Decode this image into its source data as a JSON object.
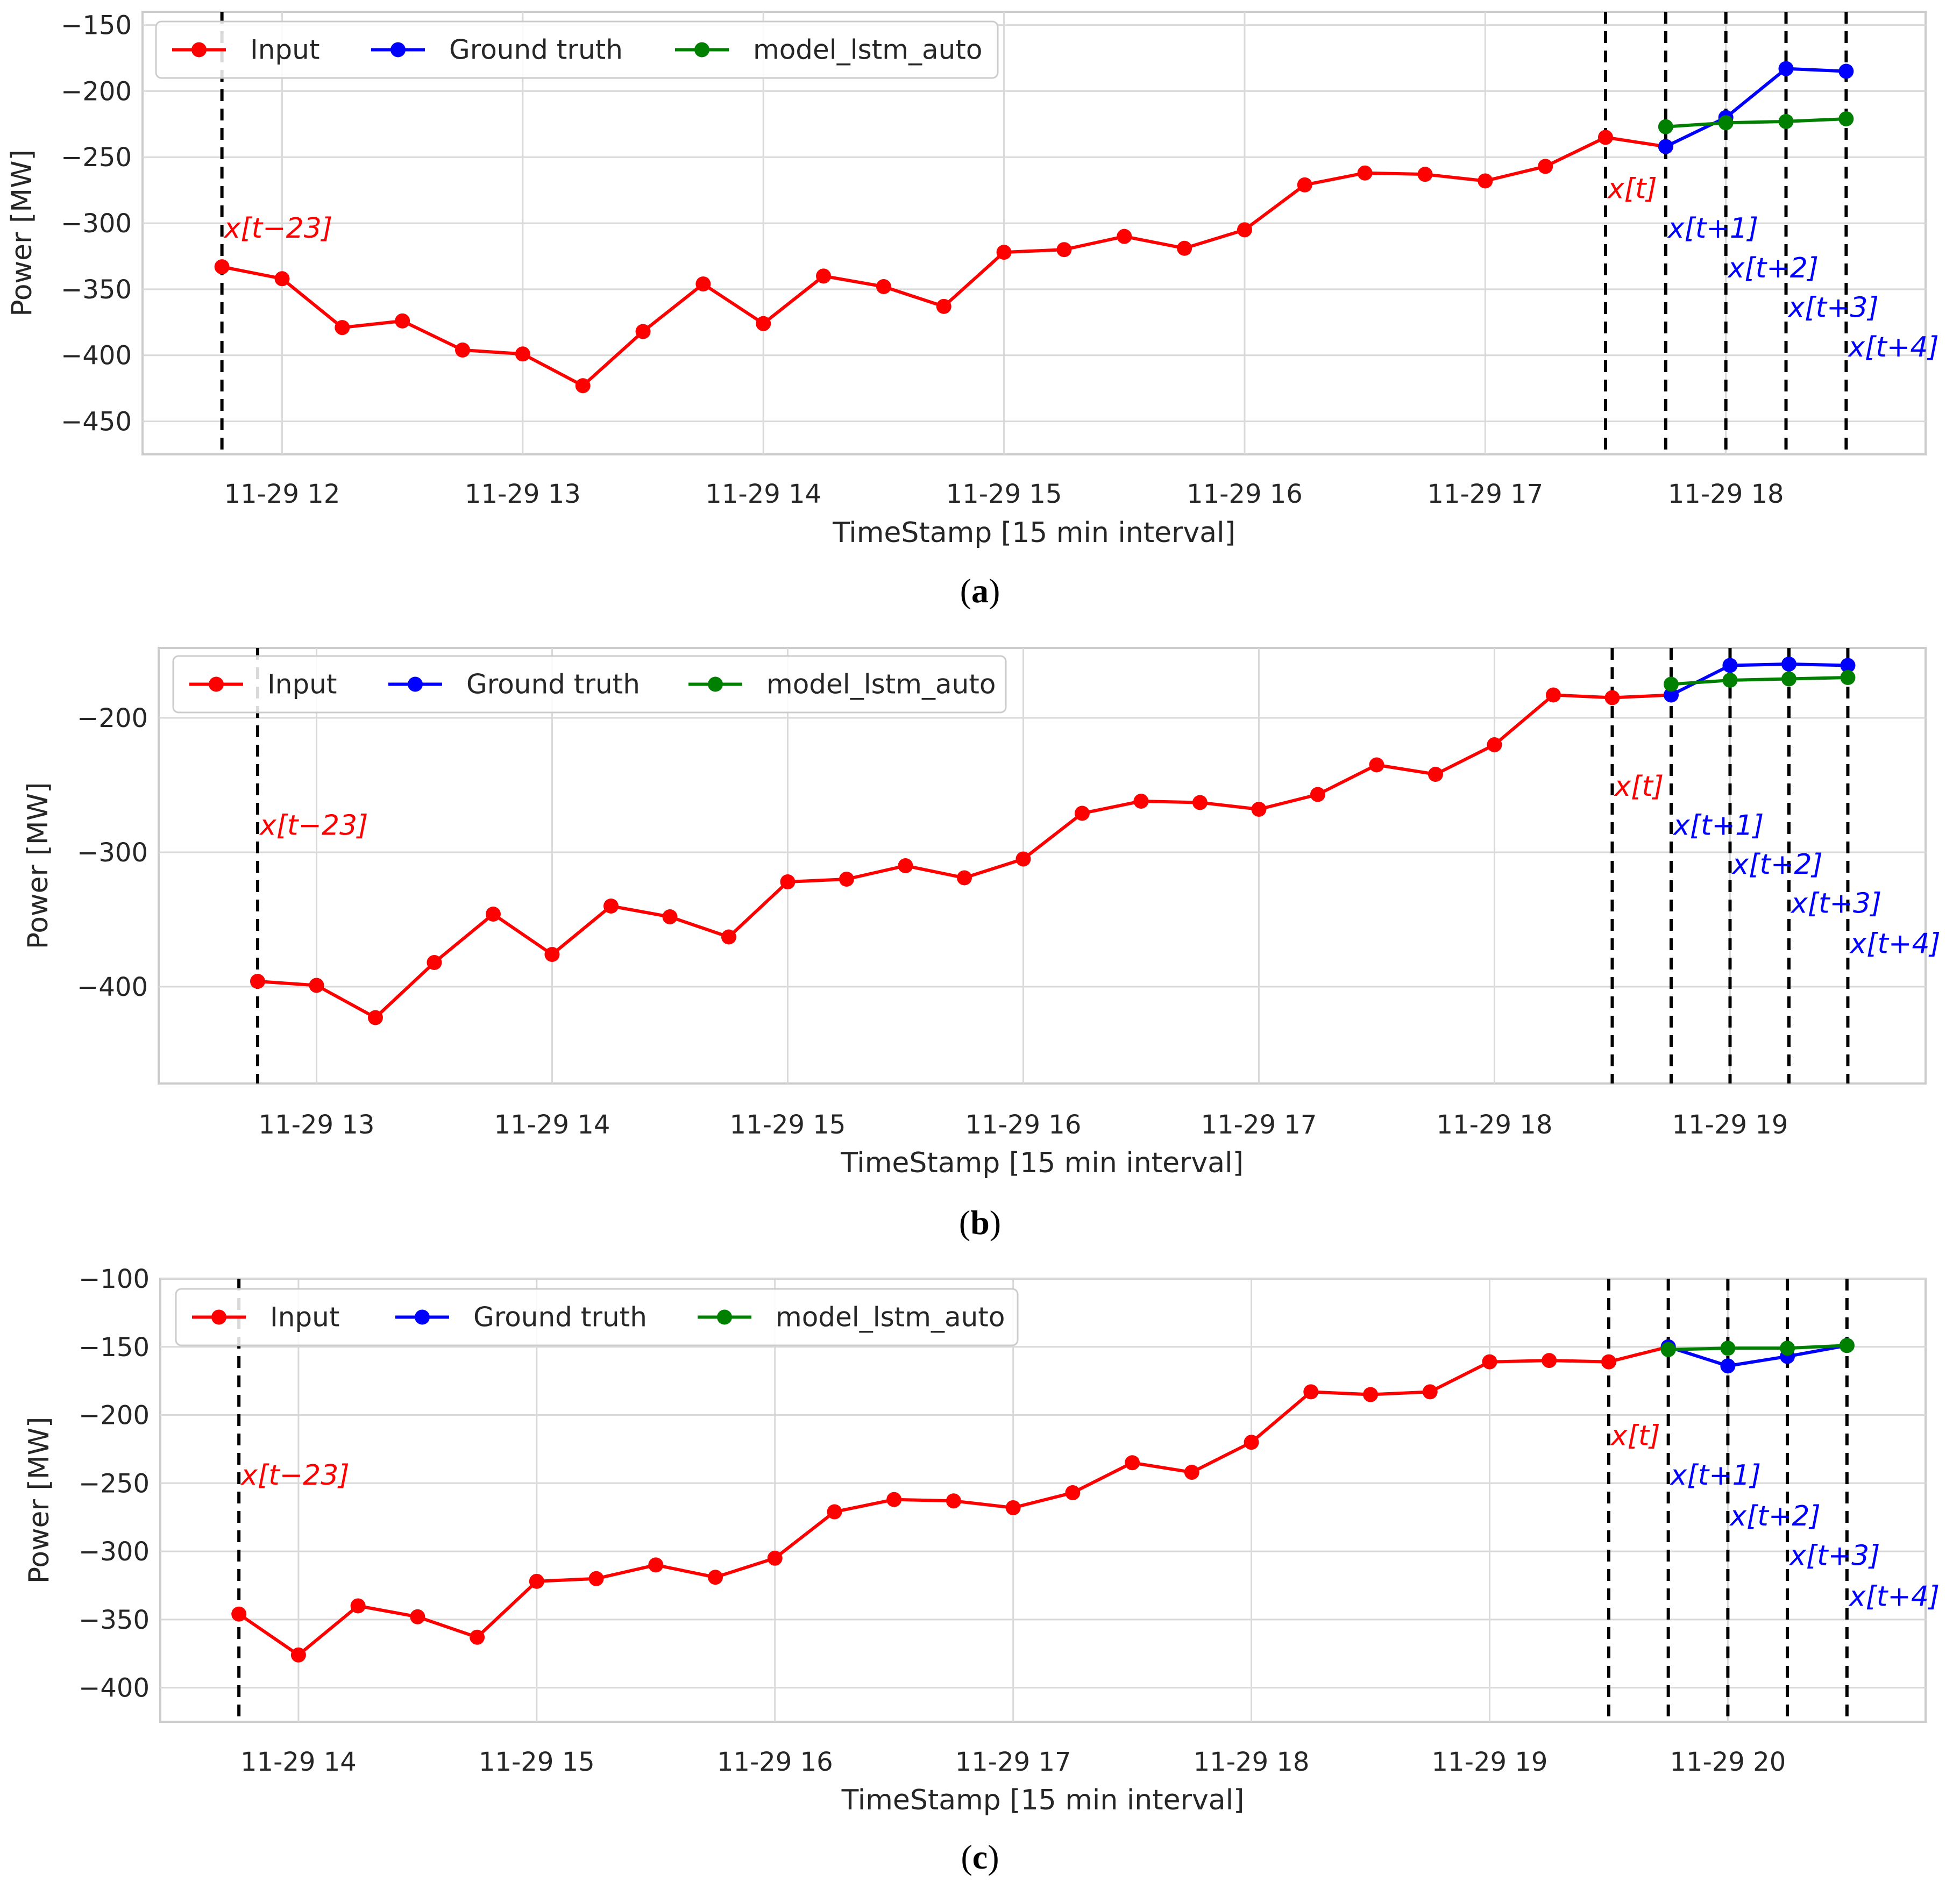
{
  "chart_data": [
    {
      "type": "line",
      "panel": "a",
      "xlabel": "TimeStamp [15 min interval]",
      "ylabel": "Power [MW]",
      "ylim": [
        -475,
        -140
      ],
      "yticks": [
        -450,
        -400,
        -350,
        -300,
        -250,
        -200,
        -150
      ],
      "xlim_hours": [
        11.42,
        18.83
      ],
      "xticks": [
        {
          "hour": 12,
          "label": "11-29 12"
        },
        {
          "hour": 13,
          "label": "11-29 13"
        },
        {
          "hour": 14,
          "label": "11-29 14"
        },
        {
          "hour": 15,
          "label": "11-29 15"
        },
        {
          "hour": 16,
          "label": "11-29 16"
        },
        {
          "hour": 17,
          "label": "11-29 17"
        },
        {
          "hour": 18,
          "label": "11-29 18"
        }
      ],
      "series": [
        {
          "name": "Input",
          "color": "#ff0000",
          "start_hour": 11.75,
          "values": [
            -333,
            -342,
            -379,
            -374,
            -396,
            -399,
            -423,
            -382,
            -346,
            -376,
            -340,
            -348,
            -363,
            -322,
            -320,
            -310,
            -319,
            -305,
            -271,
            -262,
            -263,
            -268,
            -257,
            -235,
            -242
          ]
        },
        {
          "name": "Ground truth",
          "color": "#0000ff",
          "start_hour": 17.75,
          "values": [
            -242,
            -220,
            -183,
            -185
          ]
        },
        {
          "name": "model_lstm_auto",
          "color": "#008000",
          "start_hour": 17.75,
          "values": [
            -227,
            -224,
            -223,
            -221
          ]
        }
      ],
      "vlines_hours": [
        11.75,
        17.5,
        17.75,
        18.0,
        18.25,
        18.5
      ],
      "annotations": [
        {
          "text": "x[t−23]",
          "hour": 11.75,
          "y": -311,
          "color": "#ff0000"
        },
        {
          "text": "x[t]",
          "hour": 17.5,
          "y": -281,
          "color": "#ff0000"
        },
        {
          "text": "x[t+1]",
          "hour": 17.75,
          "y": -311,
          "color": "#0000ff"
        },
        {
          "text": "x[t+2]",
          "hour": 18.0,
          "y": -341,
          "color": "#0000ff"
        },
        {
          "text": "x[t+3]",
          "hour": 18.25,
          "y": -371,
          "color": "#0000ff"
        },
        {
          "text": "x[t+4]",
          "hour": 18.5,
          "y": -401,
          "color": "#0000ff"
        }
      ],
      "caption": "a"
    },
    {
      "type": "line",
      "panel": "b",
      "xlabel": "TimeStamp [15 min interval]",
      "ylabel": "Power [MW]",
      "ylim": [
        -472,
        -148
      ],
      "yticks": [
        -400,
        -300,
        -200
      ],
      "xlim_hours": [
        12.33,
        19.83
      ],
      "xticks": [
        {
          "hour": 13,
          "label": "11-29 13"
        },
        {
          "hour": 14,
          "label": "11-29 14"
        },
        {
          "hour": 15,
          "label": "11-29 15"
        },
        {
          "hour": 16,
          "label": "11-29 16"
        },
        {
          "hour": 17,
          "label": "11-29 17"
        },
        {
          "hour": 18,
          "label": "11-29 18"
        },
        {
          "hour": 19,
          "label": "11-29 19"
        }
      ],
      "series": [
        {
          "name": "Input",
          "color": "#ff0000",
          "start_hour": 12.75,
          "values": [
            -396,
            -399,
            -423,
            -382,
            -346,
            -376,
            -340,
            -348,
            -363,
            -322,
            -320,
            -310,
            -319,
            -305,
            -271,
            -262,
            -263,
            -268,
            -257,
            -235,
            -242,
            -220,
            -183,
            -185,
            -183
          ]
        },
        {
          "name": "Ground truth",
          "color": "#0000ff",
          "start_hour": 18.75,
          "values": [
            -183,
            -161,
            -160,
            -161
          ]
        },
        {
          "name": "model_lstm_auto",
          "color": "#008000",
          "start_hour": 18.75,
          "values": [
            -175,
            -172,
            -171,
            -170
          ]
        }
      ],
      "vlines_hours": [
        12.75,
        18.5,
        18.75,
        19.0,
        19.25,
        19.5
      ],
      "annotations": [
        {
          "text": "x[t−23]",
          "hour": 12.75,
          "y": -287,
          "color": "#ff0000"
        },
        {
          "text": "x[t]",
          "hour": 18.5,
          "y": -258,
          "color": "#ff0000"
        },
        {
          "text": "x[t+1]",
          "hour": 18.75,
          "y": -287,
          "color": "#0000ff"
        },
        {
          "text": "x[t+2]",
          "hour": 19.0,
          "y": -316,
          "color": "#0000ff"
        },
        {
          "text": "x[t+3]",
          "hour": 19.25,
          "y": -345,
          "color": "#0000ff"
        },
        {
          "text": "x[t+4]",
          "hour": 19.5,
          "y": -375,
          "color": "#0000ff"
        }
      ],
      "caption": "b"
    },
    {
      "type": "line",
      "panel": "c",
      "xlabel": "TimeStamp [15 min interval]",
      "ylabel": "Power [MW]",
      "ylim": [
        -425,
        -100
      ],
      "yticks": [
        -400,
        -350,
        -300,
        -250,
        -200,
        -150,
        -100
      ],
      "xlim_hours": [
        13.42,
        20.83
      ],
      "xticks": [
        {
          "hour": 14,
          "label": "11-29 14"
        },
        {
          "hour": 15,
          "label": "11-29 15"
        },
        {
          "hour": 16,
          "label": "11-29 16"
        },
        {
          "hour": 17,
          "label": "11-29 17"
        },
        {
          "hour": 18,
          "label": "11-29 18"
        },
        {
          "hour": 19,
          "label": "11-29 19"
        },
        {
          "hour": 20,
          "label": "11-29 20"
        }
      ],
      "series": [
        {
          "name": "Input",
          "color": "#ff0000",
          "start_hour": 13.75,
          "values": [
            -346,
            -376,
            -340,
            -348,
            -363,
            -322,
            -320,
            -310,
            -319,
            -305,
            -271,
            -262,
            -263,
            -268,
            -257,
            -235,
            -242,
            -220,
            -183,
            -185,
            -183,
            -161,
            -160,
            -161,
            -150
          ]
        },
        {
          "name": "Ground truth",
          "color": "#0000ff",
          "start_hour": 19.75,
          "values": [
            -150,
            -164,
            -157,
            -149
          ]
        },
        {
          "name": "model_lstm_auto",
          "color": "#008000",
          "start_hour": 19.75,
          "values": [
            -152,
            -151,
            -151,
            -149
          ]
        }
      ],
      "vlines_hours": [
        13.75,
        19.5,
        19.75,
        20.0,
        20.25,
        20.5
      ],
      "annotations": [
        {
          "text": "x[t−23]",
          "hour": 13.75,
          "y": -251,
          "color": "#ff0000"
        },
        {
          "text": "x[t]",
          "hour": 19.5,
          "y": -222,
          "color": "#ff0000"
        },
        {
          "text": "x[t+1]",
          "hour": 19.75,
          "y": -251,
          "color": "#0000ff"
        },
        {
          "text": "x[t+2]",
          "hour": 20.0,
          "y": -281,
          "color": "#0000ff"
        },
        {
          "text": "x[t+3]",
          "hour": 20.25,
          "y": -310,
          "color": "#0000ff"
        },
        {
          "text": "x[t+4]",
          "hour": 20.5,
          "y": -340,
          "color": "#0000ff"
        }
      ],
      "caption": "c"
    }
  ]
}
